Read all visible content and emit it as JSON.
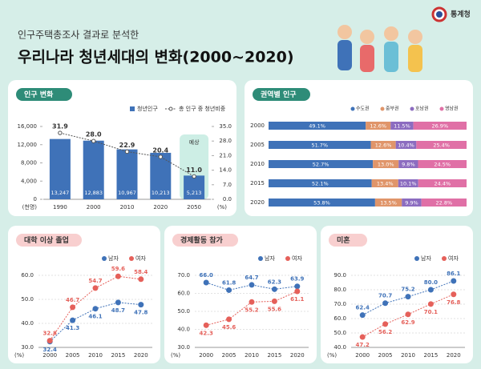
{
  "header": {
    "subtitle": "인구주택총조사 결과로 분석한",
    "title": "우리나라 청년세대의 변화(2000~2020)",
    "logo": "통계청"
  },
  "chart_data": [
    {
      "type": "bar-line",
      "title": "인구 변화",
      "categories": [
        "1990",
        "2000",
        "2010",
        "2020",
        "2050"
      ],
      "series": [
        {
          "name": "청년인구",
          "color": "#3f72b8",
          "values": [
            13247,
            12883,
            10967,
            10213,
            5213
          ],
          "value_labels": [
            "13,247",
            "12,883",
            "10,967",
            "10,213",
            "5,213"
          ]
        },
        {
          "name": "총 인구 중 청년비중",
          "color": "#555555",
          "axis": "y2",
          "values": [
            31.9,
            28.0,
            22.9,
            20.4,
            11.0
          ],
          "value_labels": [
            "31.9",
            "28.0",
            "22.9",
            "20.4",
            "11.0"
          ]
        }
      ],
      "ylim": [
        0,
        16000
      ],
      "yticks": [
        {
          "value": 0,
          "label": "0"
        },
        {
          "value": 4000,
          "label": "4,000"
        },
        {
          "value": 8000,
          "label": "8,000"
        },
        {
          "value": 12000,
          "label": "12,000"
        },
        {
          "value": 16000,
          "label": "16,000"
        }
      ],
      "y2lim": [
        0,
        35
      ],
      "y2ticks": [
        {
          "value": 0,
          "label": "0.0"
        },
        {
          "value": 7,
          "label": "7.0"
        },
        {
          "value": 14,
          "label": "14.0"
        },
        {
          "value": 21,
          "label": "21.0"
        },
        {
          "value": 28,
          "label": "28.0"
        },
        {
          "value": 35,
          "label": "35.0"
        }
      ],
      "y_unit": "(천명)",
      "y2_unit": "(%)",
      "annotation": "예상"
    },
    {
      "type": "stacked-hbar",
      "title": "권역별 인구",
      "categories": [
        "2000",
        "2005",
        "2010",
        "2015",
        "2020"
      ],
      "series": [
        {
          "name": "수도권",
          "color": "#3f72b8",
          "values": [
            49.1,
            51.7,
            52.7,
            52.1,
            53.8
          ],
          "value_labels": [
            "49.1%",
            "51.7%",
            "52.7%",
            "52.1%",
            "53.8%"
          ]
        },
        {
          "name": "중부권",
          "color": "#e0956a",
          "values": [
            12.6,
            12.6,
            13.0,
            13.4,
            13.5
          ],
          "value_labels": [
            "12.6%",
            "12.6%",
            "13.0%",
            "13.4%",
            "13.5%"
          ]
        },
        {
          "name": "호남권",
          "color": "#8c6cc0",
          "values": [
            11.5,
            10.4,
            9.8,
            10.1,
            9.9
          ],
          "value_labels": [
            "11.5%",
            "10.4%",
            "9.8%",
            "10.1%",
            "9.9%"
          ]
        },
        {
          "name": "영남권",
          "color": "#e070a6",
          "values": [
            26.9,
            25.4,
            24.5,
            24.4,
            22.8
          ],
          "value_labels": [
            "26.9%",
            "25.4%",
            "24.5%",
            "24.4%",
            "22.8%"
          ]
        }
      ]
    },
    {
      "type": "line",
      "title": "대학 이상 졸업",
      "categories": [
        "2000",
        "2005",
        "2010",
        "2015",
        "2020"
      ],
      "series": [
        {
          "name": "남자",
          "color": "#3f72b8",
          "values": [
            32.4,
            41.3,
            46.1,
            48.7,
            47.8
          ]
        },
        {
          "name": "여자",
          "color": "#e5605a",
          "values": [
            32.8,
            46.7,
            54.7,
            59.6,
            58.4
          ]
        }
      ],
      "ylim": [
        30,
        60
      ],
      "yticks": [
        {
          "value": 30,
          "label": "30.0"
        },
        {
          "value": 40,
          "label": "40.0"
        },
        {
          "value": 50,
          "label": "50.0"
        },
        {
          "value": 60,
          "label": "60.0"
        }
      ],
      "y_unit": "(%)",
      "grid": true
    },
    {
      "type": "line",
      "title": "경제활동 참가",
      "categories": [
        "2000",
        "2005",
        "2010",
        "2015",
        "2020"
      ],
      "series": [
        {
          "name": "남자",
          "color": "#3f72b8",
          "values": [
            66.0,
            61.8,
            64.7,
            62.3,
            63.9
          ],
          "value_labels": [
            "66.0",
            "61.8",
            "64.7",
            "62.3",
            "63.9"
          ]
        },
        {
          "name": "여자",
          "color": "#e5605a",
          "values": [
            42.3,
            45.6,
            55.2,
            55.6,
            61.1
          ]
        }
      ],
      "ylim": [
        30,
        70
      ],
      "yticks": [
        {
          "value": 30,
          "label": "30.0"
        },
        {
          "value": 40,
          "label": "40.0"
        },
        {
          "value": 50,
          "label": "50.0"
        },
        {
          "value": 60,
          "label": "60.0"
        },
        {
          "value": 70,
          "label": "70.0"
        }
      ],
      "y_unit": "(%)",
      "grid": true
    },
    {
      "type": "line",
      "title": "미혼",
      "categories": [
        "2000",
        "2005",
        "2010",
        "2015",
        "2020"
      ],
      "series": [
        {
          "name": "남자",
          "color": "#3f72b8",
          "values": [
            62.4,
            70.7,
            75.2,
            80.0,
            86.1
          ],
          "value_labels": [
            "62.4",
            "70.7",
            "75.2",
            "80.0",
            "86.1"
          ]
        },
        {
          "name": "여자",
          "color": "#e5605a",
          "values": [
            47.2,
            56.2,
            62.9,
            70.1,
            76.8
          ]
        }
      ],
      "ylim": [
        40,
        90
      ],
      "yticks": [
        {
          "value": 40,
          "label": "40.0"
        },
        {
          "value": 50,
          "label": "50.0"
        },
        {
          "value": 60,
          "label": "60.0"
        },
        {
          "value": 70,
          "label": "70.0"
        },
        {
          "value": 80,
          "label": "80.0"
        },
        {
          "value": 90,
          "label": "90.0"
        }
      ],
      "y_unit": "(%)",
      "grid": true
    }
  ]
}
